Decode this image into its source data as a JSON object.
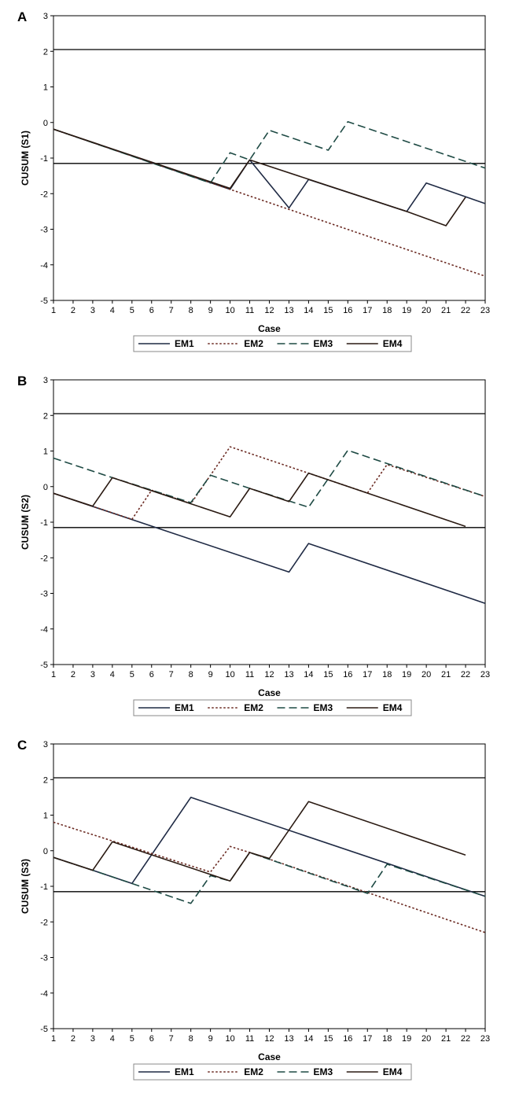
{
  "chart_data": [
    {
      "type": "line",
      "panel_label": "A",
      "xlabel": "Case",
      "ylabel": "CUSUM (S1)",
      "xlim": [
        1,
        23
      ],
      "ylim": [
        -5,
        3
      ],
      "x_ticks": [
        1,
        2,
        3,
        4,
        5,
        6,
        7,
        8,
        9,
        10,
        11,
        12,
        13,
        14,
        15,
        16,
        17,
        18,
        19,
        20,
        21,
        22,
        23
      ],
      "y_ticks": [
        3,
        2,
        1,
        0,
        -1,
        -2,
        -3,
        -4,
        -5
      ],
      "y_tick_labels": [
        "3",
        "2",
        "1",
        "0",
        "-1",
        "-2",
        "-3",
        "-4",
        "-5"
      ],
      "reference_lines": [
        2.05,
        -1.15
      ],
      "legend": [
        "EM1",
        "EM2",
        "EM3",
        "EM4"
      ],
      "series": [
        {
          "name": "EM1",
          "color": "#1f2a44",
          "dash": "solid",
          "points": [
            [
              1,
              -0.19
            ],
            [
              10,
              -1.88
            ],
            [
              11,
              -1.05
            ],
            [
              13,
              -2.4
            ],
            [
              14,
              -1.6
            ],
            [
              19,
              -2.5
            ],
            [
              20,
              -1.7
            ],
            [
              23,
              -2.28
            ]
          ]
        },
        {
          "name": "EM2",
          "color": "#6b2a22",
          "dash": "dot",
          "points": [
            [
              1,
              -0.19
            ],
            [
              23,
              -4.32
            ]
          ]
        },
        {
          "name": "EM3",
          "color": "#1e4a44",
          "dash": "dash",
          "points": [
            [
              1,
              -0.19
            ],
            [
              9,
              -1.7
            ],
            [
              10,
              -0.85
            ],
            [
              11,
              -1.05
            ],
            [
              12,
              -0.22
            ],
            [
              15,
              -0.78
            ],
            [
              16,
              0.02
            ],
            [
              23,
              -1.28
            ]
          ]
        },
        {
          "name": "EM4",
          "color": "#2a1a12",
          "dash": "solid",
          "points": [
            [
              1,
              -0.19
            ],
            [
              10,
              -1.85
            ],
            [
              11,
              -1.05
            ],
            [
              19,
              -2.5
            ],
            [
              21,
              -2.9
            ],
            [
              22,
              -2.1
            ]
          ]
        }
      ]
    },
    {
      "type": "line",
      "panel_label": "B",
      "xlabel": "Case",
      "ylabel": "CUSUM (S2)",
      "xlim": [
        1,
        23
      ],
      "ylim": [
        -5,
        3
      ],
      "x_ticks": [
        1,
        2,
        3,
        4,
        5,
        6,
        7,
        8,
        9,
        10,
        11,
        12,
        13,
        14,
        15,
        16,
        17,
        18,
        19,
        20,
        21,
        22,
        23
      ],
      "y_ticks": [
        3,
        2,
        1,
        0,
        -1,
        -2,
        -3,
        -4,
        -5
      ],
      "y_tick_labels": [
        "3",
        "2",
        "1",
        "0",
        "-1",
        "-2",
        "-3",
        "-4",
        "-5"
      ],
      "reference_lines": [
        2.05,
        -1.15
      ],
      "legend": [
        "EM1",
        "EM2",
        "EM3",
        "EM4"
      ],
      "series": [
        {
          "name": "EM1",
          "color": "#1f2a44",
          "dash": "solid",
          "points": [
            [
              1,
              -0.19
            ],
            [
              13,
              -2.4
            ],
            [
              14,
              -1.6
            ],
            [
              23,
              -3.28
            ]
          ]
        },
        {
          "name": "EM2",
          "color": "#6b2a22",
          "dash": "dot",
          "points": [
            [
              1,
              -0.19
            ],
            [
              5,
              -0.92
            ],
            [
              6,
              -0.1
            ],
            [
              8,
              -0.48
            ],
            [
              10,
              1.12
            ],
            [
              17,
              -0.18
            ],
            [
              18,
              0.62
            ],
            [
              23,
              -0.28
            ]
          ]
        },
        {
          "name": "EM3",
          "color": "#1e4a44",
          "dash": "dash",
          "points": [
            [
              1,
              0.8
            ],
            [
              4,
              0.25
            ],
            [
              8,
              -0.45
            ],
            [
              9,
              0.32
            ],
            [
              11,
              -0.05
            ],
            [
              14,
              -0.58
            ],
            [
              16,
              1.02
            ],
            [
              23,
              -0.28
            ]
          ]
        },
        {
          "name": "EM4",
          "color": "#2a1a12",
          "dash": "solid",
          "points": [
            [
              1,
              -0.19
            ],
            [
              3,
              -0.55
            ],
            [
              4,
              0.25
            ],
            [
              10,
              -0.85
            ],
            [
              11,
              -0.05
            ],
            [
              13,
              -0.42
            ],
            [
              14,
              0.38
            ],
            [
              22,
              -1.12
            ]
          ]
        }
      ]
    },
    {
      "type": "line",
      "panel_label": "C",
      "xlabel": "Case",
      "ylabel": "CUSUM (S3)",
      "xlim": [
        1,
        23
      ],
      "ylim": [
        -5,
        3
      ],
      "x_ticks": [
        1,
        2,
        3,
        4,
        5,
        6,
        7,
        8,
        9,
        10,
        11,
        12,
        13,
        14,
        15,
        16,
        17,
        18,
        19,
        20,
        21,
        22,
        23
      ],
      "y_ticks": [
        3,
        2,
        1,
        0,
        -1,
        -2,
        -3,
        -4,
        -5
      ],
      "y_tick_labels": [
        "3",
        "2",
        "1",
        "0",
        "-1",
        "-2",
        "-3",
        "-4",
        "-5"
      ],
      "reference_lines": [
        2.05,
        -1.15
      ],
      "legend": [
        "EM1",
        "EM2",
        "EM3",
        "EM4"
      ],
      "series": [
        {
          "name": "EM1",
          "color": "#1f2a44",
          "dash": "solid",
          "points": [
            [
              1,
              -0.19
            ],
            [
              3,
              -0.55
            ],
            [
              5,
              -0.92
            ],
            [
              8,
              1.5
            ],
            [
              23,
              -1.28
            ]
          ]
        },
        {
          "name": "EM2",
          "color": "#6b2a22",
          "dash": "dot",
          "points": [
            [
              1,
              0.8
            ],
            [
              9,
              -0.6
            ],
            [
              10,
              0.12
            ],
            [
              11,
              -0.05
            ],
            [
              23,
              -2.3
            ]
          ]
        },
        {
          "name": "EM3",
          "color": "#1e4a44",
          "dash": "dash",
          "points": [
            [
              1,
              -0.19
            ],
            [
              3,
              -0.55
            ],
            [
              8,
              -1.48
            ],
            [
              9,
              -0.7
            ],
            [
              10,
              -0.85
            ],
            [
              11,
              -0.05
            ],
            [
              17,
              -1.2
            ],
            [
              18,
              -0.38
            ],
            [
              23,
              -1.28
            ]
          ]
        },
        {
          "name": "EM4",
          "color": "#2a1a12",
          "dash": "solid",
          "points": [
            [
              1,
              -0.19
            ],
            [
              3,
              -0.55
            ],
            [
              4,
              0.25
            ],
            [
              10,
              -0.85
            ],
            [
              11,
              -0.05
            ],
            [
              12,
              -0.22
            ],
            [
              14,
              1.38
            ],
            [
              22,
              -0.12
            ]
          ]
        }
      ]
    }
  ]
}
